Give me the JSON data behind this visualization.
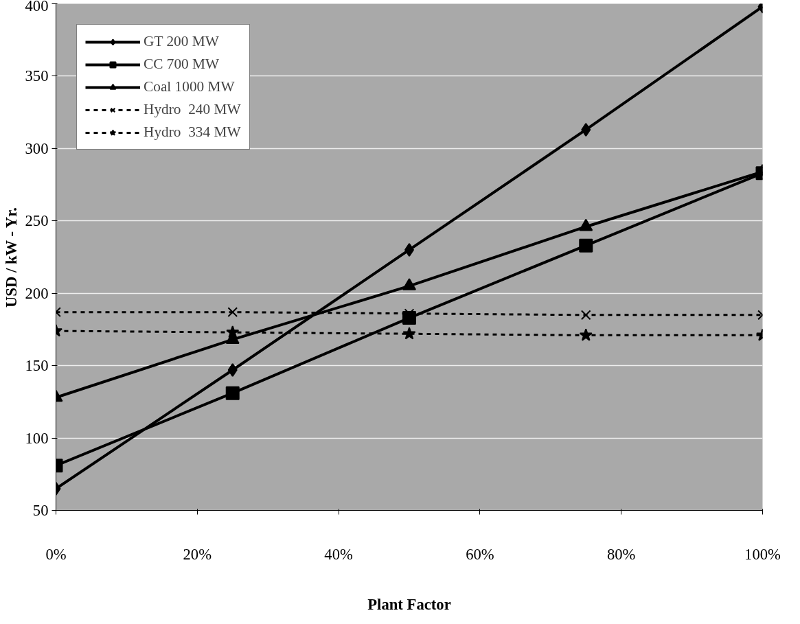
{
  "chart_data": {
    "type": "line",
    "xlabel": "Plant Factor",
    "ylabel": "USD / kW - Yr.",
    "x": [
      0,
      25,
      50,
      75,
      100
    ],
    "xlim": [
      0,
      100
    ],
    "xticks": [
      {
        "value": 0,
        "label": "0%"
      },
      {
        "value": 20,
        "label": "20%"
      },
      {
        "value": 40,
        "label": "40%"
      },
      {
        "value": 60,
        "label": "60%"
      },
      {
        "value": 80,
        "label": "80%"
      },
      {
        "value": 100,
        "label": "100%"
      }
    ],
    "ylim": [
      50,
      400
    ],
    "yticks": [
      50,
      100,
      150,
      200,
      250,
      300,
      350,
      400
    ],
    "grid": "y",
    "legend": "top left",
    "series": [
      {
        "name": "GT 200 MW",
        "color": "#000000",
        "marker": "diamond",
        "line_style": "solid",
        "values": [
          65,
          147,
          230,
          313,
          398
        ]
      },
      {
        "name": "CC 700 MW",
        "color": "#000000",
        "marker": "square",
        "line_style": "solid",
        "values": [
          81,
          131,
          183,
          233,
          283
        ]
      },
      {
        "name": "Coal 1000 MW",
        "color": "#000000",
        "marker": "triangle",
        "line_style": "solid",
        "values": [
          128,
          168,
          205,
          246,
          284
        ]
      },
      {
        "name": "Hydro  240 MW",
        "color": "#000000",
        "marker": "cross",
        "line_style": "dashed",
        "values": [
          187,
          187,
          186,
          185,
          185
        ]
      },
      {
        "name": "Hydro  334 MW",
        "color": "#000000",
        "marker": "star",
        "line_style": "dashed",
        "values": [
          174,
          173,
          172,
          171,
          171
        ]
      }
    ]
  }
}
